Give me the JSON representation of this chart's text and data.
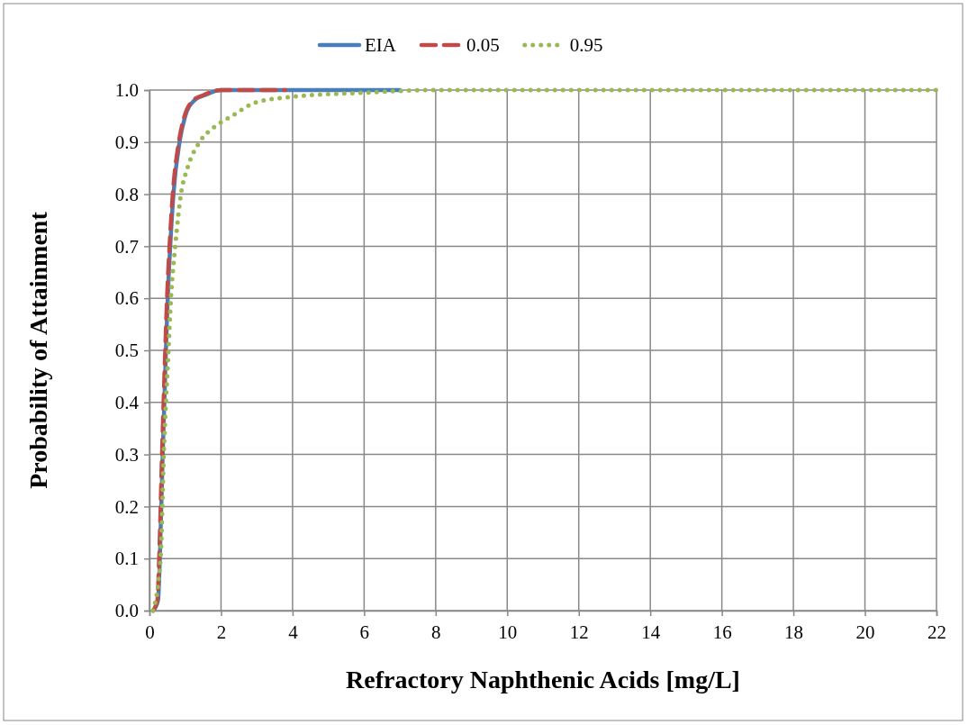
{
  "chart_data": {
    "type": "line",
    "xlabel": "Refractory Naphthenic Acids [mg/L]",
    "ylabel": "Probability of Attainment",
    "xlim": [
      0,
      22
    ],
    "xticks": [
      0,
      2,
      4,
      6,
      8,
      10,
      12,
      14,
      16,
      18,
      20,
      22
    ],
    "ylim": [
      0,
      1
    ],
    "yticks": [
      {
        "value": 0,
        "label": "0.0"
      },
      0.1,
      0.2,
      0.3,
      0.4,
      0.5,
      0.6,
      0.7,
      0.8,
      0.9,
      {
        "value": 1,
        "label": "1.0"
      }
    ],
    "grid": true,
    "legend": "top",
    "series": [
      {
        "name": "EIA",
        "color": "#4a7ebb",
        "line_style": "solid",
        "x": [
          0.1,
          0.24,
          0.29,
          0.37,
          0.46,
          0.51,
          0.58,
          0.67,
          0.84,
          1.0,
          1.25,
          1.54,
          2.0,
          7.0
        ],
        "values": [
          0,
          0.02,
          0.1,
          0.3,
          0.5,
          0.6,
          0.7,
          0.8,
          0.9,
          0.95,
          0.98,
          0.99,
          1.0,
          1.0
        ]
      },
      {
        "name": "0.05",
        "color": "#be4b48",
        "line_style": "dashed",
        "x": [
          0.1,
          0.22,
          0.27,
          0.35,
          0.44,
          0.49,
          0.56,
          0.65,
          0.82,
          0.98,
          1.22,
          1.5,
          2.0,
          3.8
        ],
        "values": [
          0,
          0.02,
          0.1,
          0.3,
          0.5,
          0.6,
          0.7,
          0.8,
          0.9,
          0.95,
          0.98,
          0.99,
          1.0,
          1.0
        ]
      },
      {
        "name": "0.95",
        "color": "#98b954",
        "line_style": "dotted",
        "x": [
          0.1,
          0.31,
          0.4,
          0.53,
          0.6,
          0.72,
          0.88,
          1.06,
          1.4,
          1.83,
          2.3,
          3.0,
          4.0,
          6.0,
          8.0,
          22.0
        ],
        "values": [
          0,
          0.1,
          0.3,
          0.5,
          0.6,
          0.7,
          0.8,
          0.85,
          0.9,
          0.93,
          0.95,
          0.977,
          0.987,
          0.995,
          1.0,
          1.0
        ]
      }
    ]
  }
}
